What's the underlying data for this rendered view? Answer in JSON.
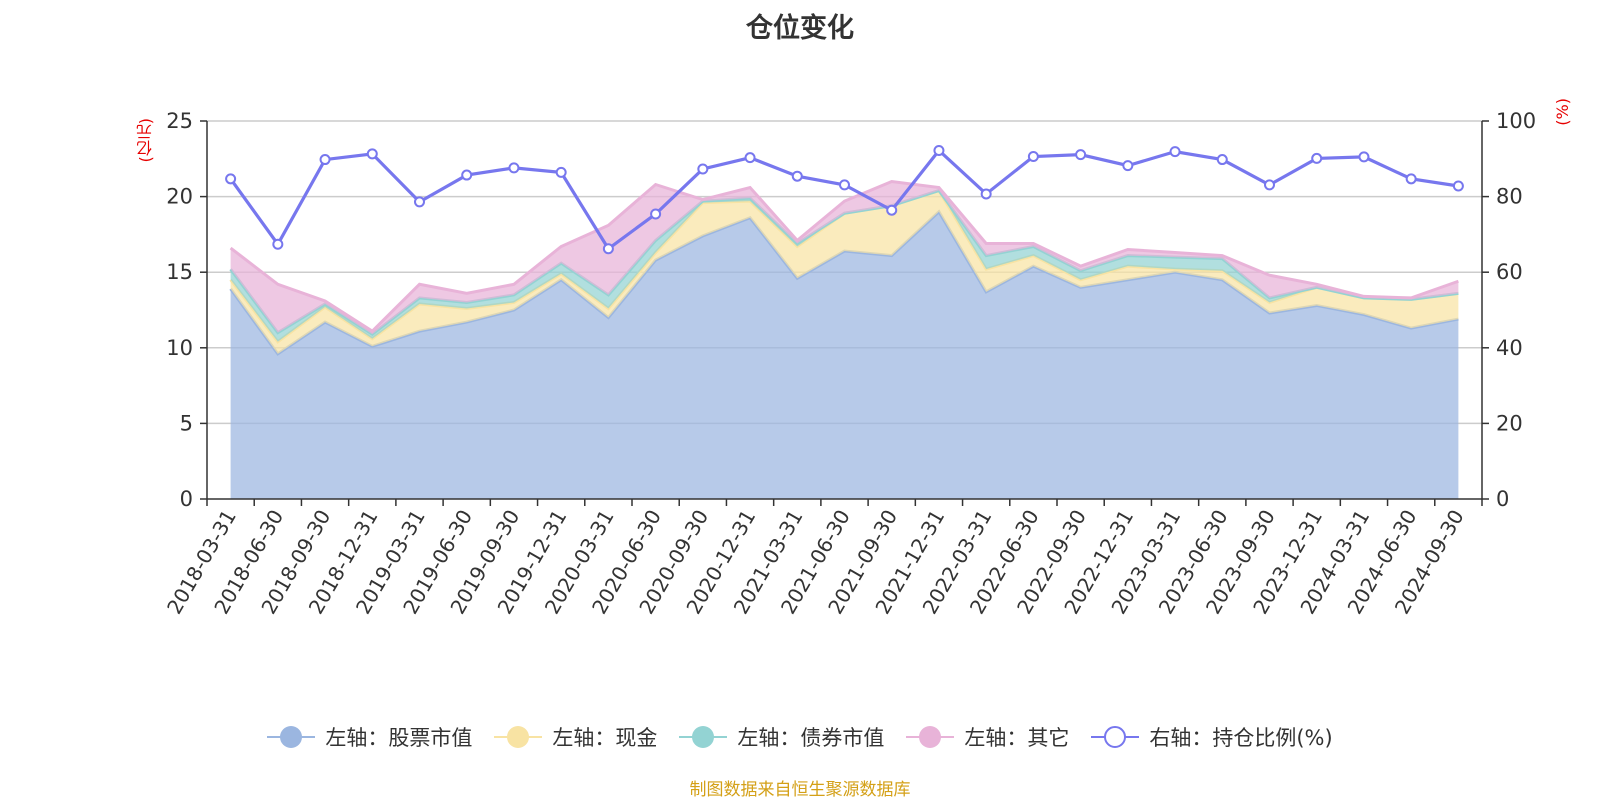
{
  "title": "仓位变化",
  "source": "制图数据来自恒生聚源数据库",
  "chart_data": {
    "type": "area",
    "title": "仓位变化",
    "left_axis_unit": "(亿元)",
    "right_axis_unit": "(%)",
    "left_ylim": [
      0,
      25
    ],
    "right_ylim": [
      0,
      100
    ],
    "left_ticks": [
      "0",
      "5",
      "10",
      "15",
      "20",
      "25"
    ],
    "right_ticks": [
      "0",
      "20",
      "40",
      "60",
      "80",
      "100"
    ],
    "categories": [
      "2018-03-31",
      "2018-06-30",
      "2018-09-30",
      "2018-12-31",
      "2019-03-31",
      "2019-06-30",
      "2019-09-30",
      "2019-12-31",
      "2020-03-31",
      "2020-06-30",
      "2020-09-30",
      "2020-12-31",
      "2021-03-31",
      "2021-06-30",
      "2021-09-30",
      "2021-12-31",
      "2022-03-31",
      "2022-06-30",
      "2022-09-30",
      "2022-12-31",
      "2023-03-31",
      "2023-06-30",
      "2023-09-30",
      "2023-12-31",
      "2024-03-31",
      "2024-06-30",
      "2024-09-30"
    ],
    "stacked_series": [
      {
        "name": "左轴：股票市值",
        "axis": "left",
        "color": "#9bb6e0",
        "values": [
          13.9,
          9.6,
          11.7,
          10.1,
          11.1,
          11.7,
          12.5,
          14.5,
          12.0,
          15.8,
          17.4,
          18.6,
          14.6,
          16.4,
          16.1,
          19.0,
          13.7,
          15.4,
          14.0,
          14.5,
          15.0,
          14.5,
          12.3,
          12.8,
          12.2,
          11.3,
          11.9
        ]
      },
      {
        "name": "左轴：现金",
        "axis": "left",
        "color": "#f8e3a3",
        "values": [
          0.6,
          0.8,
          1.0,
          0.5,
          1.8,
          0.9,
          0.5,
          0.4,
          0.6,
          0.5,
          2.2,
          1.1,
          2.1,
          2.5,
          3.3,
          1.4,
          1.5,
          0.7,
          0.5,
          0.9,
          0.2,
          0.6,
          0.7,
          1.2,
          1.1,
          1.9,
          1.7
        ]
      },
      {
        "name": "左轴：债券市值",
        "axis": "left",
        "color": "#93d3d3",
        "values": [
          0.7,
          0.6,
          0.2,
          0.3,
          0.4,
          0.4,
          0.5,
          0.7,
          0.9,
          0.8,
          0.1,
          0.2,
          0.2,
          0.0,
          0.0,
          0.0,
          0.9,
          0.6,
          0.6,
          0.7,
          0.8,
          0.8,
          0.3,
          0.0,
          0.0,
          0.0,
          0.0
        ]
      },
      {
        "name": "左轴：其它",
        "axis": "left",
        "color": "#e8b3d8",
        "values": [
          1.4,
          3.2,
          0.2,
          0.2,
          0.9,
          0.6,
          0.7,
          1.1,
          4.6,
          3.7,
          0.1,
          0.7,
          0.2,
          0.8,
          1.6,
          0.2,
          0.8,
          0.2,
          0.3,
          0.4,
          0.3,
          0.2,
          1.5,
          0.2,
          0.1,
          0.1,
          0.8
        ]
      }
    ],
    "line_series": {
      "name": "右轴：持仓比例(%)",
      "axis": "right",
      "color": "#7777ee",
      "values": [
        84.7,
        67.4,
        89.8,
        91.3,
        78.6,
        85.7,
        87.6,
        86.4,
        66.2,
        75.4,
        87.3,
        90.3,
        85.4,
        83.1,
        76.4,
        92.2,
        80.7,
        90.6,
        91.1,
        88.2,
        91.9,
        89.8,
        83.1,
        90.1,
        90.5,
        84.7,
        82.8
      ]
    }
  }
}
